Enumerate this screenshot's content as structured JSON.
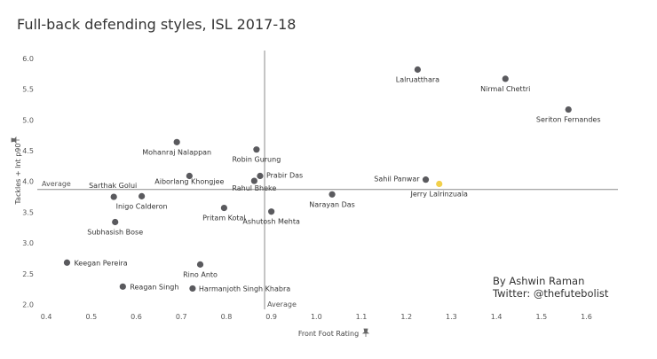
{
  "chart_data": {
    "type": "scatter",
    "title": "Full-back defending styles, ISL 2017-18",
    "xlabel": "Front Foot Rating",
    "ylabel": "Tackles + Int p90",
    "axis_title_icon": "pin-icon",
    "xlim": [
      0.38,
      1.67
    ],
    "ylim": [
      1.92,
      6.13
    ],
    "xticks": [
      "0.4",
      "0.5",
      "0.6",
      "0.7",
      "0.8",
      "0.9",
      "1.0",
      "1.1",
      "1.2",
      "1.3",
      "1.4",
      "1.5",
      "1.6"
    ],
    "yticks": [
      "2.0",
      "2.5",
      "3.0",
      "3.5",
      "4.0",
      "4.5",
      "5.0",
      "5.5",
      "6.0"
    ],
    "grid": false,
    "reference_lines": {
      "x": 0.885,
      "x_label": "Average",
      "y": 3.87,
      "y_label": "Average"
    },
    "colors": {
      "point": "#5a5a5e",
      "highlight": "#f2d04b"
    },
    "points": [
      {
        "name": "Lalruatthara",
        "x": 1.225,
        "y": 5.82
      },
      {
        "name": "Nirmal Chettri",
        "x": 1.42,
        "y": 5.67
      },
      {
        "name": "Seriton Fernandes",
        "x": 1.56,
        "y": 5.17
      },
      {
        "name": "Mohanraj Nalappan",
        "x": 0.69,
        "y": 4.64
      },
      {
        "name": "Robin Gurung",
        "x": 0.867,
        "y": 4.52
      },
      {
        "name": "Prabir Das",
        "x": 0.875,
        "y": 4.09
      },
      {
        "name": "Rahul Bheke",
        "x": 0.862,
        "y": 4.01
      },
      {
        "name": "Aiborlang Khongjee",
        "x": 0.718,
        "y": 4.09
      },
      {
        "name": "Sarthak Golui",
        "x": 0.55,
        "y": 3.75
      },
      {
        "name": "Inigo Calderon",
        "x": 0.612,
        "y": 3.76
      },
      {
        "name": "Sahil Panwar",
        "x": 1.243,
        "y": 4.03
      },
      {
        "name": "Jerry Lalrinzuala",
        "x": 1.273,
        "y": 3.96,
        "highlight": true
      },
      {
        "name": "Narayan Das",
        "x": 1.035,
        "y": 3.79
      },
      {
        "name": "Pritam Kotal",
        "x": 0.795,
        "y": 3.57
      },
      {
        "name": "Ashutosh Mehta",
        "x": 0.9,
        "y": 3.51
      },
      {
        "name": "Subhasish Bose",
        "x": 0.553,
        "y": 3.34
      },
      {
        "name": "Keegan Pereira",
        "x": 0.446,
        "y": 2.68
      },
      {
        "name": "Rino Anto",
        "x": 0.742,
        "y": 2.65
      },
      {
        "name": "Reagan Singh",
        "x": 0.57,
        "y": 2.29
      },
      {
        "name": "Harmanjoth Singh Khabra",
        "x": 0.725,
        "y": 2.26
      }
    ]
  },
  "credits": {
    "line1": "By Ashwin Raman",
    "line2": "Twitter: @thefutebolist"
  }
}
